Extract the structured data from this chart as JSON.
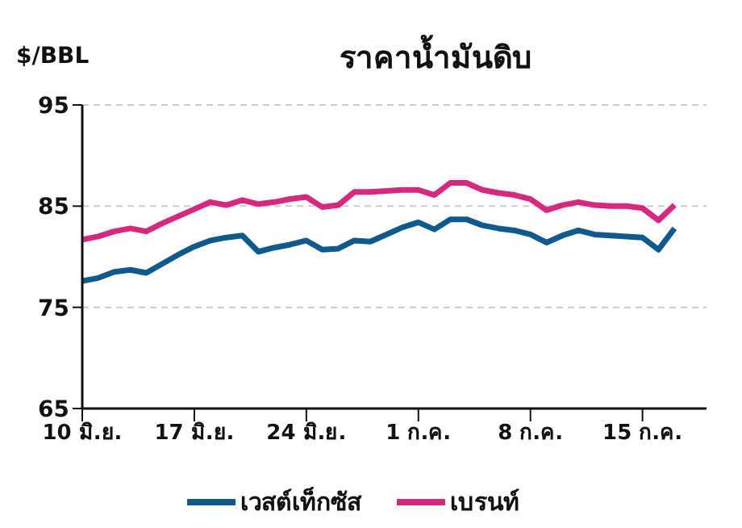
{
  "chart_data": {
    "type": "line",
    "title": "ราคาน้ำมันดิบ",
    "ylabel": "$/BBL",
    "x": [
      "--06-10",
      "--06-11",
      "--06-12",
      "--06-13",
      "--06-14",
      "--06-15",
      "--06-16",
      "--06-17",
      "--06-18",
      "--06-19",
      "--06-20",
      "--06-21",
      "--06-22",
      "--06-23",
      "--06-24",
      "--06-25",
      "--06-26",
      "--06-27",
      "--06-28",
      "--06-29",
      "--06-30",
      "--07-01",
      "--07-02",
      "--07-03",
      "--07-04",
      "--07-05",
      "--07-06",
      "--07-07",
      "--07-08",
      "--07-09",
      "--07-10",
      "--07-11",
      "--07-12",
      "--07-13",
      "--07-14",
      "--07-15",
      "--07-16",
      "--07-17"
    ],
    "series": [
      {
        "name": "เวสต์เท็กซัส",
        "color": "#0f5a8c",
        "values": [
          77.6,
          77.9,
          78.5,
          78.7,
          78.4,
          79.3,
          80.2,
          81.0,
          81.6,
          81.9,
          82.1,
          80.5,
          80.9,
          81.2,
          81.6,
          80.7,
          80.8,
          81.6,
          81.5,
          82.2,
          82.9,
          83.4,
          82.7,
          83.7,
          83.7,
          83.1,
          82.8,
          82.6,
          82.2,
          81.4,
          82.1,
          82.6,
          82.2,
          82.1,
          82.0,
          81.9,
          80.7,
          82.8
        ]
      },
      {
        "name": "เบรนท์",
        "color": "#d6287f",
        "values": [
          81.7,
          82.0,
          82.5,
          82.8,
          82.5,
          83.3,
          84.0,
          84.7,
          85.4,
          85.1,
          85.6,
          85.2,
          85.4,
          85.7,
          85.9,
          84.9,
          85.1,
          86.4,
          86.4,
          86.5,
          86.6,
          86.6,
          86.1,
          87.3,
          87.3,
          86.6,
          86.3,
          86.1,
          85.7,
          84.6,
          85.1,
          85.4,
          85.1,
          85.0,
          85.0,
          84.8,
          83.6,
          85.1
        ]
      }
    ],
    "xlim": [
      "--06-10",
      "--07-19"
    ],
    "xticks": [
      {
        "value": "--06-10",
        "label": "10 มิ.ย."
      },
      {
        "value": "--06-17",
        "label": "17 มิ.ย."
      },
      {
        "value": "--06-24",
        "label": "24 มิ.ย."
      },
      {
        "value": "--07-01",
        "label": "1 ก.ค."
      },
      {
        "value": "--07-08",
        "label": "8 ก.ค."
      },
      {
        "value": "--07-15",
        "label": "15 ก.ค."
      }
    ],
    "ylim": [
      65,
      95
    ],
    "yticks": [
      65,
      75,
      85,
      95
    ],
    "grid": "y",
    "legend": "bottom",
    "marker": "none",
    "line_style": "solid"
  }
}
